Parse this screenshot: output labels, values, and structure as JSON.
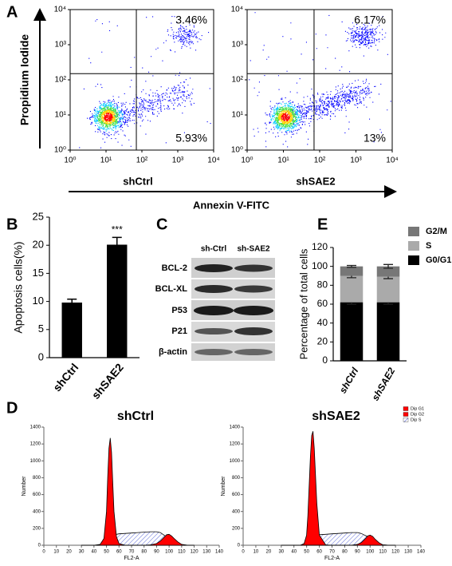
{
  "panel_labels": [
    "A",
    "B",
    "C",
    "D",
    "E"
  ],
  "panel_a": {
    "xlabel": "Annexin V-FITC",
    "ylabel": "Propidium Iodide"
  },
  "blot": {
    "columns": [
      "sh-Ctrl",
      "sh-SAE2"
    ],
    "rows": [
      "BCL-2",
      "BCL-XL",
      "P53",
      "P21",
      "β-actin"
    ]
  },
  "chart_data": [
    {
      "type": "flow",
      "sample": "shCtrl",
      "log_scale": true,
      "xlim": [
        1,
        10000
      ],
      "ylim": [
        1,
        10000
      ],
      "xticks": [
        {
          "value": 1,
          "label": "10⁰"
        },
        {
          "value": 10,
          "label": "10¹"
        },
        {
          "value": 100,
          "label": "10²"
        },
        {
          "value": 1000,
          "label": "10³"
        },
        {
          "value": 10000,
          "label": "10⁴"
        }
      ],
      "yticks": [
        {
          "value": 1,
          "label": "10⁰"
        },
        {
          "value": 10,
          "label": "10¹"
        },
        {
          "value": 100,
          "label": "10²"
        },
        {
          "value": 1000,
          "label": "10³"
        },
        {
          "value": 10000,
          "label": "10⁴"
        }
      ],
      "gate_x": 70,
      "gate_y": 150,
      "quadrants": [
        "upper-right",
        "lower-right"
      ],
      "values": [
        3.46,
        5.93
      ],
      "value_labels": [
        "3.46%",
        "5.93%"
      ]
    },
    {
      "type": "flow",
      "sample": "shSAE2",
      "log_scale": true,
      "xlim": [
        1,
        10000
      ],
      "ylim": [
        1,
        10000
      ],
      "xticks": [
        {
          "value": 1,
          "label": "10⁰"
        },
        {
          "value": 10,
          "label": "10¹"
        },
        {
          "value": 100,
          "label": "10²"
        },
        {
          "value": 1000,
          "label": "10³"
        },
        {
          "value": 10000,
          "label": "10⁴"
        }
      ],
      "yticks": [
        {
          "value": 1,
          "label": "10⁰"
        },
        {
          "value": 10,
          "label": "10¹"
        },
        {
          "value": 100,
          "label": "10²"
        },
        {
          "value": 1000,
          "label": "10³"
        },
        {
          "value": 10000,
          "label": "10⁴"
        }
      ],
      "gate_x": 70,
      "gate_y": 150,
      "quadrants": [
        "upper-right",
        "lower-right"
      ],
      "values": [
        6.17,
        13
      ],
      "value_labels": [
        "6.17%",
        "13%"
      ]
    },
    {
      "type": "bar",
      "ylabel": "Apoptosis cells(%)",
      "categories": [
        "shCtrl",
        "shSAE2"
      ],
      "values": [
        9.8,
        20.1
      ],
      "errors": [
        0.6,
        1.3
      ],
      "significance": [
        null,
        "***"
      ],
      "color": "#000000",
      "ylim": [
        0,
        25
      ],
      "yticks": [
        0,
        5,
        10,
        15,
        20,
        25
      ]
    },
    {
      "type": "stacked-bar",
      "ylabel": "Percentage of total cells",
      "categories": [
        "shCtrl",
        "shSAE2"
      ],
      "series": [
        {
          "name": "G0/G1",
          "color": "#000000",
          "values": [
            62,
            62
          ],
          "errors": [
            2,
            2
          ]
        },
        {
          "name": "S",
          "color": "#aaaaaa",
          "values": [
            28,
            27
          ],
          "errors": [
            2,
            2
          ]
        },
        {
          "name": "G2/M",
          "color": "#777777",
          "values": [
            10,
            11
          ],
          "errors": [
            1,
            2
          ]
        }
      ],
      "ylim": [
        0,
        120
      ],
      "yticks": [
        0,
        20,
        40,
        60,
        80,
        100,
        120
      ],
      "legend": "upper-right"
    },
    {
      "type": "histogram-fit",
      "title": "shCtrl",
      "xlabel": "FL2-A",
      "ylabel": "Number",
      "legend": false,
      "xlim": [
        0,
        140
      ],
      "ylim": [
        0,
        1400
      ],
      "xticks": [
        0,
        10,
        20,
        30,
        40,
        50,
        60,
        70,
        80,
        90,
        100,
        110,
        120,
        130,
        140
      ],
      "yticks": [
        0,
        200,
        400,
        600,
        800,
        1000,
        1200,
        1400
      ],
      "x": [
        30,
        40,
        45,
        48,
        50,
        51,
        52,
        53,
        54,
        55,
        56,
        58,
        60,
        65,
        70,
        75,
        80,
        85,
        90,
        93,
        95,
        97,
        98,
        100,
        102,
        104,
        107,
        110,
        115,
        120
      ],
      "series": [
        {
          "color": "#ff0000",
          "hatch": false,
          "values": [
            0,
            0,
            10,
            80,
            400,
            800,
            1150,
            1270,
            1100,
            750,
            400,
            100,
            20,
            0,
            0,
            0,
            0,
            0,
            0,
            0,
            0,
            0,
            0,
            0,
            0,
            0,
            0,
            0,
            0,
            0
          ]
        },
        {
          "color": "#ff0000",
          "hatch": false,
          "values": [
            0,
            0,
            0,
            0,
            0,
            0,
            0,
            0,
            0,
            0,
            0,
            0,
            0,
            0,
            0,
            0,
            0,
            5,
            20,
            50,
            80,
            110,
            125,
            130,
            110,
            80,
            40,
            10,
            0,
            0
          ]
        },
        {
          "color": "#3344cc",
          "hatch": true,
          "values": [
            0,
            0,
            0,
            5,
            20,
            40,
            60,
            80,
            100,
            110,
            120,
            130,
            135,
            140,
            145,
            150,
            155,
            160,
            160,
            150,
            130,
            110,
            100,
            80,
            60,
            40,
            20,
            5,
            0,
            0
          ]
        }
      ]
    },
    {
      "type": "histogram-fit",
      "title": "shSAE2",
      "xlabel": "FL2-A",
      "ylabel": "Number",
      "legend": true,
      "xlim": [
        0,
        140
      ],
      "ylim": [
        0,
        1400
      ],
      "xticks": [
        0,
        10,
        20,
        30,
        40,
        50,
        60,
        70,
        80,
        90,
        100,
        110,
        120,
        130,
        140
      ],
      "yticks": [
        0,
        200,
        400,
        600,
        800,
        1000,
        1200,
        1400
      ],
      "x": [
        30,
        40,
        45,
        48,
        50,
        51,
        52,
        53,
        54,
        55,
        56,
        58,
        60,
        65,
        70,
        75,
        80,
        85,
        90,
        93,
        95,
        97,
        98,
        100,
        102,
        104,
        107,
        110,
        115,
        120
      ],
      "series": [
        {
          "name": "Dip G1",
          "color": "#ff0000",
          "hatch": false,
          "values": [
            0,
            0,
            0,
            20,
            120,
            350,
            700,
            1050,
            1300,
            1350,
            1150,
            500,
            120,
            5,
            0,
            0,
            0,
            0,
            0,
            0,
            0,
            0,
            0,
            0,
            0,
            0,
            0,
            0,
            0,
            0
          ]
        },
        {
          "name": "Dip G2",
          "color": "#ff0000",
          "hatch": false,
          "values": [
            0,
            0,
            0,
            0,
            0,
            0,
            0,
            0,
            0,
            0,
            0,
            0,
            0,
            0,
            0,
            0,
            0,
            0,
            10,
            30,
            60,
            90,
            110,
            120,
            105,
            70,
            30,
            5,
            0,
            0
          ]
        },
        {
          "name": "Dip S",
          "color": "#3344cc",
          "hatch": true,
          "values": [
            0,
            0,
            0,
            5,
            15,
            30,
            50,
            70,
            90,
            100,
            110,
            120,
            125,
            130,
            135,
            140,
            145,
            150,
            150,
            140,
            125,
            110,
            100,
            80,
            60,
            40,
            20,
            5,
            0,
            0
          ]
        }
      ]
    }
  ]
}
